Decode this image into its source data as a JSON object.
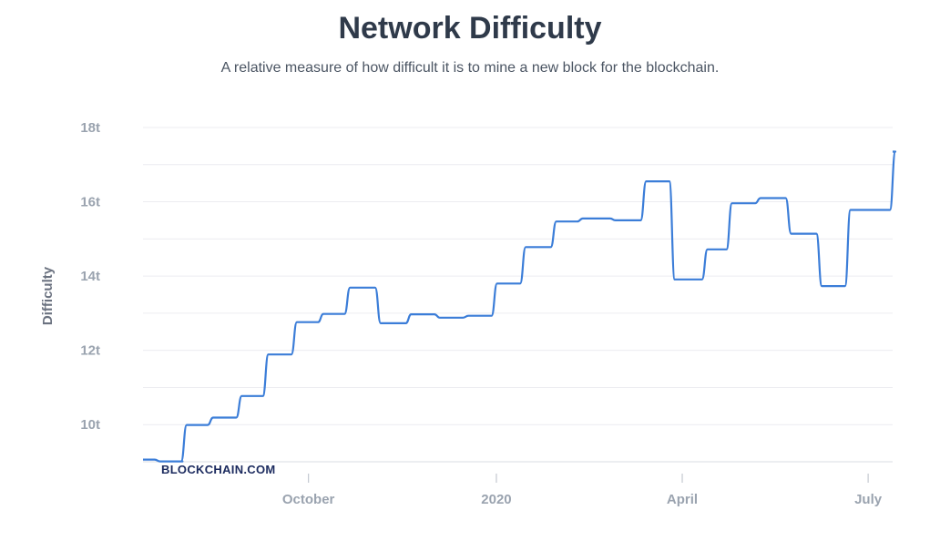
{
  "chart_data": {
    "type": "line",
    "title": "Network Difficulty",
    "subtitle": "A relative measure of how difficult it is to mine a new block for the blockchain.",
    "ylabel": "Difficulty",
    "xlabel": "",
    "ylim": [
      9,
      18
    ],
    "xlim": [
      "2019-07-12",
      "2020-07-13"
    ],
    "y_ticks": [
      {
        "value": 10,
        "label": "10t"
      },
      {
        "value": 12,
        "label": "12t"
      },
      {
        "value": 14,
        "label": "14t"
      },
      {
        "value": 16,
        "label": "16t"
      },
      {
        "value": 18,
        "label": "18t"
      }
    ],
    "x_ticks": [
      {
        "date": "2019-10-01",
        "label": "October"
      },
      {
        "date": "2020-01-01",
        "label": "2020"
      },
      {
        "date": "2020-04-01",
        "label": "April"
      },
      {
        "date": "2020-07-01",
        "label": "July"
      }
    ],
    "grid": "horizontal",
    "series": [
      {
        "color": "#3b7dd8",
        "x": [
          "2019-07-12",
          "2019-07-19",
          "2019-07-30",
          "2019-08-01",
          "2019-08-14",
          "2019-08-28",
          "2019-09-10",
          "2019-09-24",
          "2019-10-07",
          "2019-10-20",
          "2019-11-04",
          "2019-11-19",
          "2019-12-03",
          "2019-12-17",
          "2019-12-31",
          "2020-01-14",
          "2020-01-29",
          "2020-02-11",
          "2020-02-27",
          "2020-03-13",
          "2020-03-27",
          "2020-04-12",
          "2020-04-24",
          "2020-05-08",
          "2020-05-23",
          "2020-06-07",
          "2020-06-21",
          "2020-07-10",
          "2020-07-13"
        ],
        "values": [
          9.06,
          9.01,
          9.01,
          9.99,
          10.19,
          10.77,
          11.89,
          12.76,
          12.98,
          13.69,
          12.73,
          12.97,
          12.88,
          12.93,
          13.8,
          14.78,
          15.47,
          15.55,
          15.5,
          16.55,
          13.91,
          14.72,
          15.96,
          16.1,
          15.14,
          13.73,
          15.78,
          15.78,
          17.35
        ]
      }
    ]
  },
  "watermark": "BLOCKCHAIN.COM"
}
